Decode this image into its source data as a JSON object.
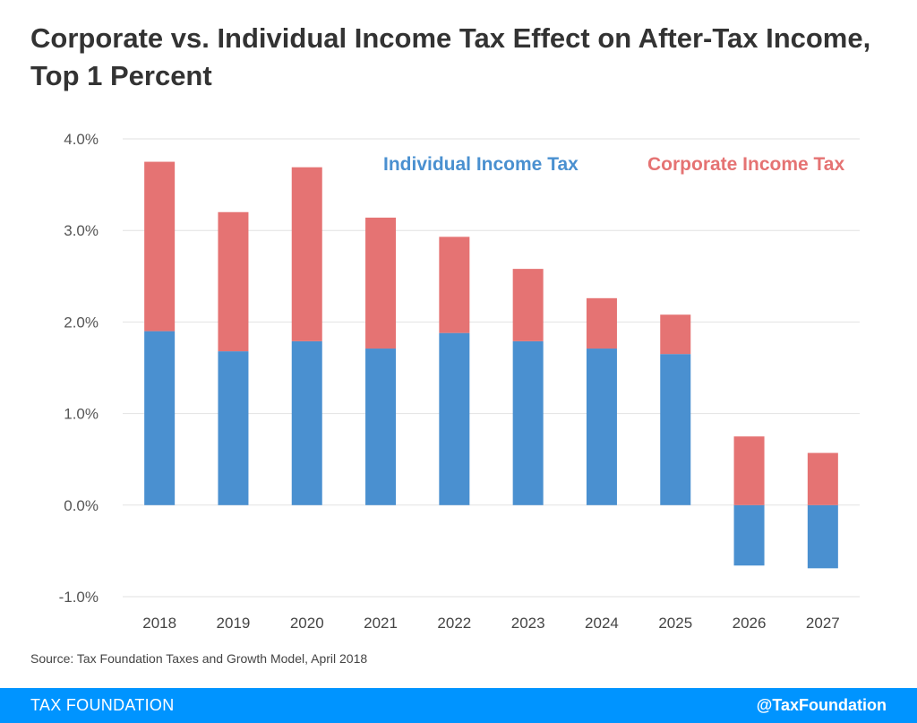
{
  "chart_data": {
    "type": "bar",
    "stacked": true,
    "title": "Corporate vs. Individual Income Tax Effect on After-Tax Income, Top 1 Percent",
    "xlabel": "",
    "ylabel": "",
    "ylim": [
      -1.0,
      4.0
    ],
    "yticks": [
      {
        "value": 4.0,
        "label": "4.0%"
      },
      {
        "value": 3.0,
        "label": "3.0%"
      },
      {
        "value": 2.0,
        "label": "2.0%"
      },
      {
        "value": 1.0,
        "label": "1.0%"
      },
      {
        "value": 0.0,
        "label": "0.0%"
      },
      {
        "value": -1.0,
        "label": "-1.0%"
      }
    ],
    "grid": true,
    "legend_position": "top-right",
    "categories": [
      "2018",
      "2019",
      "2020",
      "2021",
      "2022",
      "2023",
      "2024",
      "2025",
      "2026",
      "2027"
    ],
    "series": [
      {
        "name": "Individual Income Tax",
        "color": "#4a90d0",
        "values": [
          1.9,
          1.68,
          1.79,
          1.71,
          1.88,
          1.79,
          1.71,
          1.65,
          -0.66,
          -0.69
        ]
      },
      {
        "name": "Corporate Income Tax",
        "color": "#e57373",
        "values": [
          1.85,
          1.52,
          1.9,
          1.43,
          1.05,
          0.79,
          0.55,
          0.43,
          0.75,
          0.57
        ]
      }
    ],
    "source": "Source: Tax Foundation Taxes and Growth Model, April 2018"
  },
  "footer": {
    "brand": "TAX FOUNDATION",
    "handle": "@TaxFoundation",
    "background": "#0094ff"
  }
}
